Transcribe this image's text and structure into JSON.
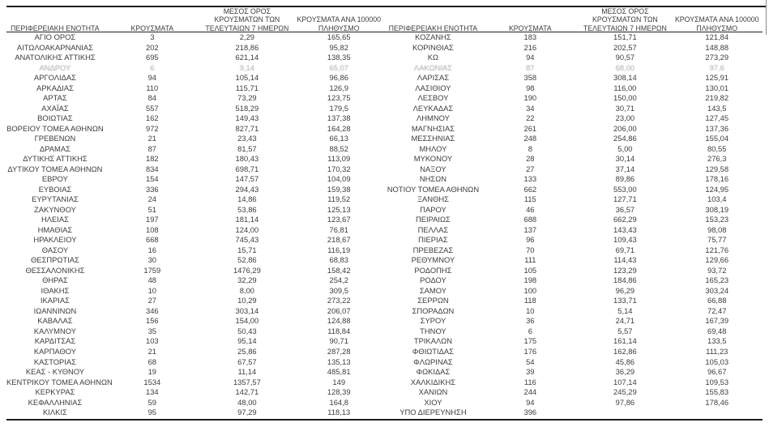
{
  "colors": {
    "background": "#ffffff",
    "text": "#3d3d3d",
    "rule_line": "#1f1f1f"
  },
  "table": {
    "columns": [
      {
        "id": "region",
        "lines": [
          "ΠΕΡΙΦΕΡΕΙΑΚΗ ΕΝΟΤΗΤΑ"
        ]
      },
      {
        "id": "cases",
        "lines": [
          "ΚΡΟΥΣΜΑΤΑ"
        ]
      },
      {
        "id": "avg7",
        "lines": [
          "ΜΕΣΟΣ ΟΡΟΣ",
          "ΚΡΟΥΣΜΑΤΩΝ ΤΩΝ",
          "ΤΕΛΕΥΤΑΙΩΝ 7 ΗΜΕΡΩΝ"
        ]
      },
      {
        "id": "per100k",
        "lines": [
          "ΚΡΟΥΣΜΑΤΑ ΑΝΑ 100000",
          "ΠΛΗΘΥΣΜΟ"
        ]
      }
    ],
    "faded_row_index": 3,
    "left_rows": [
      [
        "ΑΓΙΟ ΟΡΟΣ",
        "3",
        "2,29",
        "165,65"
      ],
      [
        "ΑΙΤΩΛΟΑΚΑΡΝΑΝΙΑΣ",
        "202",
        "218,86",
        "95,82"
      ],
      [
        "ΑΝΑΤΟΛΙΚΗΣ ΑΤΤΙΚΗΣ",
        "695",
        "621,14",
        "138,35"
      ],
      [
        "ΑΝΔΡΟΥ",
        "6",
        "9,14",
        "65,07"
      ],
      [
        "ΑΡΓΟΛΙΔΑΣ",
        "94",
        "105,14",
        "96,86"
      ],
      [
        "ΑΡΚΑΔΙΑΣ",
        "110",
        "115,71",
        "126,9"
      ],
      [
        "ΑΡΤΑΣ",
        "84",
        "73,29",
        "123,75"
      ],
      [
        "ΑΧΑΪΑΣ",
        "557",
        "518,29",
        "179,5"
      ],
      [
        "ΒΟΙΩΤΙΑΣ",
        "162",
        "149,43",
        "137,38"
      ],
      [
        "ΒΟΡΕΙΟΥ ΤΟΜΕΑ ΑΘΗΝΩΝ",
        "972",
        "827,71",
        "164,28"
      ],
      [
        "ΓΡΕΒΕΝΩΝ",
        "21",
        "23,43",
        "66,13"
      ],
      [
        "ΔΡΑΜΑΣ",
        "87",
        "81,57",
        "88,52"
      ],
      [
        "ΔΥΤΙΚΗΣ ΑΤΤΙΚΗΣ",
        "182",
        "180,43",
        "113,09"
      ],
      [
        "ΔΥΤΙΚΟΥ ΤΟΜΕΑ ΑΘΗΝΩΝ",
        "834",
        "698,71",
        "170,32"
      ],
      [
        "ΕΒΡΟΥ",
        "154",
        "147,57",
        "104,09"
      ],
      [
        "ΕΥΒΟΙΑΣ",
        "336",
        "294,43",
        "159,38"
      ],
      [
        "ΕΥΡΥΤΑΝΙΑΣ",
        "24",
        "14,86",
        "119,52"
      ],
      [
        "ΖΑΚΥΝΘΟΥ",
        "51",
        "53,86",
        "125,13"
      ],
      [
        "ΗΛΕΙΑΣ",
        "197",
        "181,14",
        "123,67"
      ],
      [
        "ΗΜΑΘΙΑΣ",
        "108",
        "124,00",
        "76,81"
      ],
      [
        "ΗΡΑΚΛΕΙΟΥ",
        "668",
        "745,43",
        "218,67"
      ],
      [
        "ΘΑΣΟΥ",
        "16",
        "15,71",
        "116,19"
      ],
      [
        "ΘΕΣΠΡΩΤΙΑΣ",
        "30",
        "52,86",
        "68,83"
      ],
      [
        "ΘΕΣΣΑΛΟΝΙΚΗΣ",
        "1759",
        "1476,29",
        "158,42"
      ],
      [
        "ΘΗΡΑΣ",
        "48",
        "32,29",
        "254,2"
      ],
      [
        "ΙΘΑΚΗΣ",
        "10",
        "8,00",
        "309,5"
      ],
      [
        "ΙΚΑΡΙΑΣ",
        "27",
        "10,29",
        "273,22"
      ],
      [
        "ΙΩΑΝΝΙΝΩΝ",
        "346",
        "303,14",
        "206,07"
      ],
      [
        "ΚΑΒΑΛΑΣ",
        "156",
        "154,00",
        "124,88"
      ],
      [
        "ΚΑΛΥΜΝΟΥ",
        "35",
        "50,43",
        "118,84"
      ],
      [
        "ΚΑΡΔΙΤΣΑΣ",
        "103",
        "95,14",
        "90,71"
      ],
      [
        "ΚΑΡΠΑΘΟΥ",
        "21",
        "25,86",
        "287,28"
      ],
      [
        "ΚΑΣΤΟΡΙΑΣ",
        "68",
        "67,57",
        "135,13"
      ],
      [
        "ΚΕΑΣ - ΚΥΘΝΟΥ",
        "19",
        "11,14",
        "485,81"
      ],
      [
        "ΚΕΝΤΡΙΚΟΥ ΤΟΜΕΑ ΑΘΗΝΩΝ",
        "1534",
        "1357,57",
        "149"
      ],
      [
        "ΚΕΡΚΥΡΑΣ",
        "134",
        "142,71",
        "128,39"
      ],
      [
        "ΚΕΦΑΛΛΗΝΙΑΣ",
        "59",
        "48,00",
        "164,8"
      ],
      [
        "ΚΙΛΚΙΣ",
        "95",
        "97,29",
        "118,13"
      ]
    ],
    "right_rows": [
      [
        "ΚΟΖΑΝΗΣ",
        "183",
        "151,71",
        "121,84"
      ],
      [
        "ΚΟΡΙΝΘΙΑΣ",
        "216",
        "202,57",
        "148,88"
      ],
      [
        "ΚΩ",
        "94",
        "90,57",
        "273,29"
      ],
      [
        "ΛΑΚΩΝΙΑΣ",
        "87",
        "68,00",
        "97,6"
      ],
      [
        "ΛΑΡΙΣΑΣ",
        "358",
        "308,14",
        "125,91"
      ],
      [
        "ΛΑΣΙΘΙΟΥ",
        "98",
        "116,00",
        "130,01"
      ],
      [
        "ΛΕΣΒΟΥ",
        "190",
        "150,00",
        "219,82"
      ],
      [
        "ΛΕΥΚΑΔΑΣ",
        "34",
        "30,71",
        "143,5"
      ],
      [
        "ΛΗΜΝΟΥ",
        "22",
        "23,00",
        "127,45"
      ],
      [
        "ΜΑΓΝΗΣΙΑΣ",
        "261",
        "206,00",
        "137,36"
      ],
      [
        "ΜΕΣΣΗΝΙΑΣ",
        "248",
        "254,86",
        "155,04"
      ],
      [
        "ΜΗΛΟΥ",
        "8",
        "5,00",
        "80,55"
      ],
      [
        "ΜΥΚΟΝΟΥ",
        "28",
        "30,14",
        "276,3"
      ],
      [
        "ΝΑΞΟΥ",
        "27",
        "37,14",
        "129,58"
      ],
      [
        "ΝΗΣΩΝ",
        "133",
        "89,86",
        "178,16"
      ],
      [
        "ΝΟΤΙΟΥ ΤΟΜΕΑ ΑΘΗΝΩΝ",
        "662",
        "553,00",
        "124,95"
      ],
      [
        "ΞΑΝΘΗΣ",
        "115",
        "127,71",
        "103,4"
      ],
      [
        "ΠΑΡΟΥ",
        "46",
        "36,57",
        "308,19"
      ],
      [
        "ΠΕΙΡΑΙΩΣ",
        "688",
        "662,29",
        "153,23"
      ],
      [
        "ΠΕΛΛΑΣ",
        "137",
        "143,43",
        "98,08"
      ],
      [
        "ΠΙΕΡΙΑΣ",
        "96",
        "109,43",
        "75,77"
      ],
      [
        "ΠΡΕΒΕΖΑΣ",
        "70",
        "69,71",
        "121,76"
      ],
      [
        "ΡΕΘΥΜΝΟΥ",
        "111",
        "114,43",
        "129,66"
      ],
      [
        "ΡΟΔΟΠΗΣ",
        "105",
        "123,29",
        "93,72"
      ],
      [
        "ΡΟΔΟΥ",
        "198",
        "184,86",
        "165,23"
      ],
      [
        "ΣΑΜΟΥ",
        "100",
        "96,29",
        "303,24"
      ],
      [
        "ΣΕΡΡΩΝ",
        "118",
        "133,71",
        "66,88"
      ],
      [
        "ΣΠΟΡΑΔΩΝ",
        "10",
        "5,14",
        "72,47"
      ],
      [
        "ΣΥΡΟΥ",
        "36",
        "24,71",
        "167,39"
      ],
      [
        "ΤΗΝΟΥ",
        "6",
        "5,57",
        "69,48"
      ],
      [
        "ΤΡΙΚΑΛΩΝ",
        "175",
        "161,14",
        "133,5"
      ],
      [
        "ΦΘΙΩΤΙΔΑΣ",
        "176",
        "162,86",
        "111,23"
      ],
      [
        "ΦΛΩΡΙΝΑΣ",
        "54",
        "45,86",
        "105,03"
      ],
      [
        "ΦΩΚΙΔΑΣ",
        "39",
        "36,29",
        "96,67"
      ],
      [
        "ΧΑΛΚΙΔΙΚΗΣ",
        "116",
        "107,14",
        "109,53"
      ],
      [
        "ΧΑΝΙΩΝ",
        "244",
        "245,29",
        "155,83"
      ],
      [
        "ΧΙΟΥ",
        "94",
        "97,86",
        "178,46"
      ],
      [
        "ΥΠΟ ΔΙΕΡΕΥΝΗΣΗ",
        "396",
        "",
        ""
      ]
    ]
  }
}
